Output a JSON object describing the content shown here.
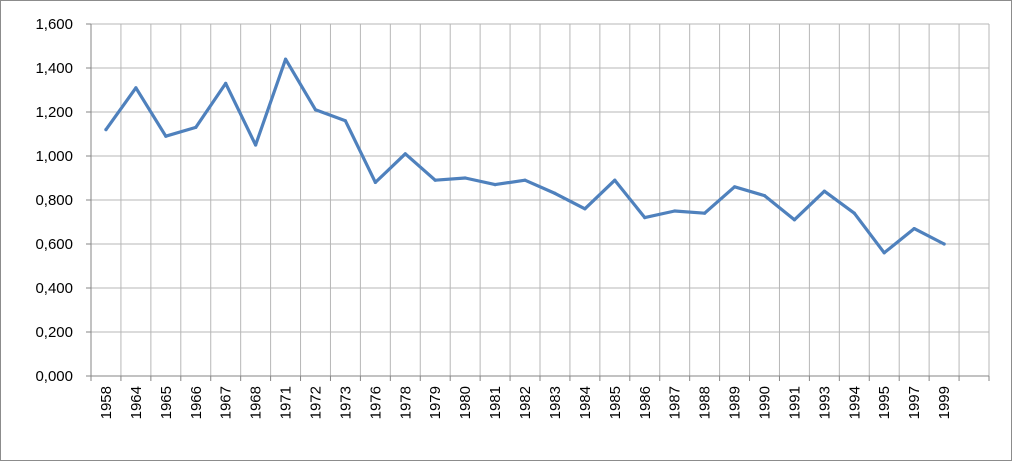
{
  "chart_data": {
    "type": "line",
    "title": "",
    "xlabel": "",
    "ylabel": "",
    "ylim": [
      0,
      1.6
    ],
    "y_ticks": [
      {
        "value": 0.0,
        "label": "0,000"
      },
      {
        "value": 0.2,
        "label": "0,200"
      },
      {
        "value": 0.4,
        "label": "0,400"
      },
      {
        "value": 0.6,
        "label": "0,600"
      },
      {
        "value": 0.8,
        "label": "0,800"
      },
      {
        "value": 1.0,
        "label": "1,000"
      },
      {
        "value": 1.2,
        "label": "1,200"
      },
      {
        "value": 1.4,
        "label": "1,400"
      },
      {
        "value": 1.6,
        "label": "1,600"
      }
    ],
    "grid": true,
    "legend": "none",
    "line_color": "#4f81bd",
    "categories": [
      "1958",
      "1964",
      "1965",
      "1966",
      "1967",
      "1968",
      "1971",
      "1972",
      "1973",
      "1976",
      "1978",
      "1979",
      "1980",
      "1981",
      "1982",
      "1983",
      "1984",
      "1985",
      "1986",
      "1987",
      "1988",
      "1989",
      "1990",
      "1991",
      "1993",
      "1994",
      "1995",
      "1997",
      "1999"
    ],
    "series": [
      {
        "values": [
          1.12,
          1.31,
          1.09,
          1.13,
          1.33,
          1.05,
          1.44,
          1.21,
          1.16,
          0.88,
          1.01,
          0.89,
          0.9,
          0.87,
          0.89,
          0.83,
          0.76,
          0.89,
          0.72,
          0.75,
          0.74,
          0.86,
          0.82,
          0.71,
          0.84,
          0.74,
          0.56,
          0.67,
          0.6
        ]
      }
    ]
  }
}
